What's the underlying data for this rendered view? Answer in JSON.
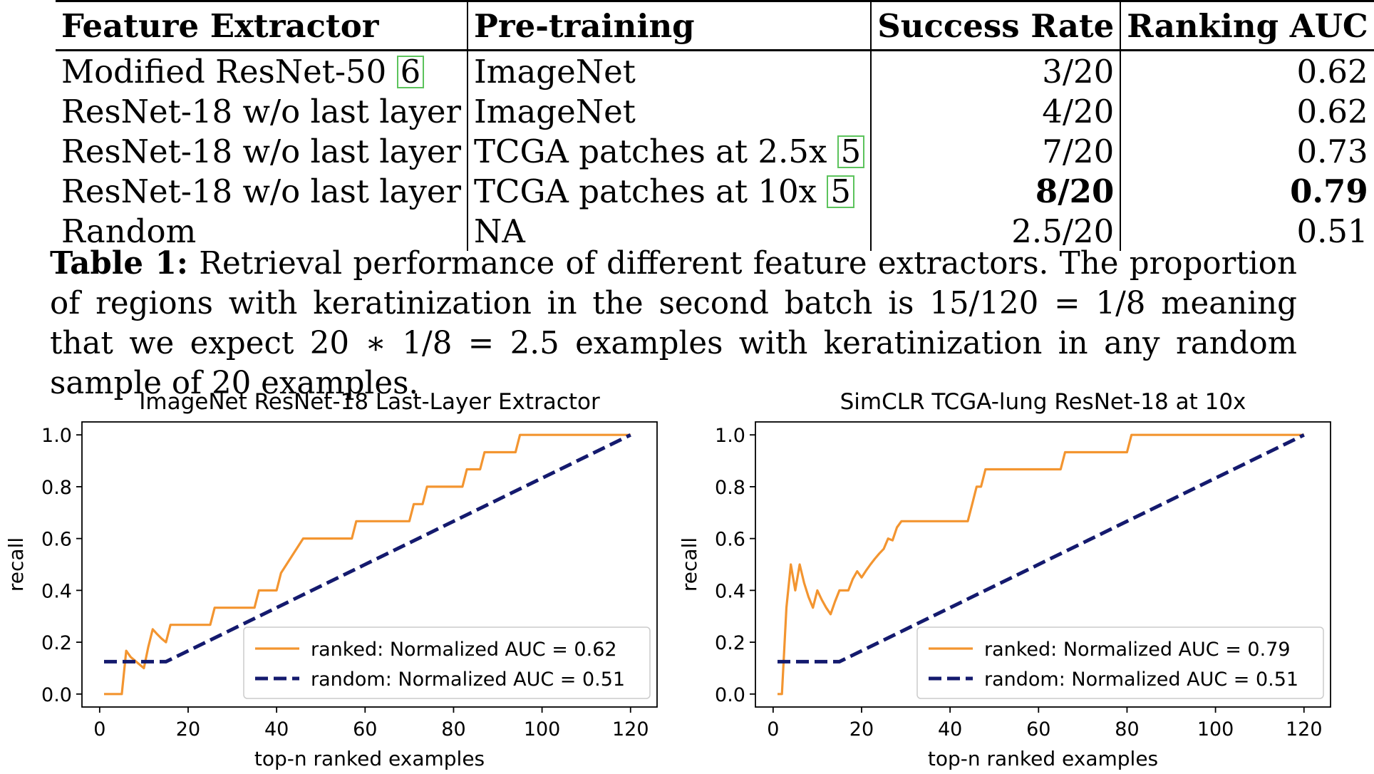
{
  "table": {
    "headers": [
      "Feature Extractor",
      "Pre-training",
      "Success Rate",
      "Ranking AUC"
    ],
    "rows": [
      {
        "extractor": "Modified ResNet-50",
        "extractor_cite": "6",
        "pretraining": "ImageNet",
        "pretraining_cite": "",
        "success": "3/20",
        "auc": "0.62",
        "best": false
      },
      {
        "extractor": "ResNet-18 w/o last layer",
        "extractor_cite": "",
        "pretraining": "ImageNet",
        "pretraining_cite": "",
        "success": "4/20",
        "auc": "0.62",
        "best": false
      },
      {
        "extractor": "ResNet-18 w/o last layer",
        "extractor_cite": "",
        "pretraining": "TCGA patches at 2.5x",
        "pretraining_cite": "5",
        "success": "7/20",
        "auc": "0.73",
        "best": false
      },
      {
        "extractor": "ResNet-18 w/o last layer",
        "extractor_cite": "",
        "pretraining": "TCGA patches at 10x",
        "pretraining_cite": "5",
        "success": "8/20",
        "auc": "0.79",
        "best": true
      },
      {
        "extractor": "Random",
        "extractor_cite": "",
        "pretraining": "NA",
        "pretraining_cite": "",
        "success": "2.5/20",
        "auc": "0.51",
        "best": false
      }
    ]
  },
  "caption": {
    "label": "Table 1:",
    "text": "Retrieval performance of different feature extractors. The proportion of regions with keratinization in the second batch is 15/120 = 1/8 meaning that we expect 20 ∗ 1/8 = 2.5 examples with keratinization in any random sample of 20 examples."
  },
  "colors": {
    "ranked": "#f39530",
    "random": "#141a6e",
    "cite_box": "#5cc35c"
  },
  "chart_data": [
    {
      "type": "line",
      "title": "ImageNet ResNet-18 Last-Layer Extractor",
      "xlabel": "top-n ranked examples",
      "ylabel": "recall",
      "xlim": [
        -4,
        126
      ],
      "ylim": [
        -0.05,
        1.05
      ],
      "xticks": [
        0,
        20,
        40,
        60,
        80,
        100,
        120
      ],
      "yticks": [
        "0.0",
        "0.2",
        "0.4",
        "0.6",
        "0.8",
        "1.0"
      ],
      "grid": false,
      "legend_position": "lower-right",
      "series": [
        {
          "name": "ranked: Normalized AUC = 0.62",
          "style": "solid",
          "x": [
            1,
            5,
            6,
            7,
            10,
            11,
            12,
            13,
            14,
            15,
            16,
            25,
            26,
            35,
            36,
            40,
            41,
            46,
            57,
            58,
            70,
            71,
            73,
            74,
            82,
            83,
            86,
            87,
            94,
            95,
            120
          ],
          "y": [
            0,
            0,
            0.167,
            0.143,
            0.1,
            0.182,
            0.25,
            0.231,
            0.214,
            0.2,
            0.267,
            0.267,
            0.333,
            0.333,
            0.4,
            0.4,
            0.467,
            0.6,
            0.6,
            0.667,
            0.667,
            0.733,
            0.733,
            0.8,
            0.8,
            0.867,
            0.867,
            0.933,
            0.933,
            1,
            1
          ]
        },
        {
          "name": "random: Normalized AUC = 0.51",
          "style": "dashed",
          "x": [
            1,
            15,
            120
          ],
          "y": [
            0.125,
            0.125,
            1.0
          ]
        }
      ]
    },
    {
      "type": "line",
      "title": "SimCLR TCGA-lung ResNet-18 at 10x",
      "xlabel": "top-n ranked examples",
      "ylabel": "recall",
      "xlim": [
        -4,
        126
      ],
      "ylim": [
        -0.05,
        1.05
      ],
      "xticks": [
        0,
        20,
        40,
        60,
        80,
        100,
        120
      ],
      "yticks": [
        "0.0",
        "0.2",
        "0.4",
        "0.6",
        "0.8",
        "1.0"
      ],
      "grid": false,
      "legend_position": "lower-right",
      "series": [
        {
          "name": "ranked: Normalized AUC = 0.79",
          "style": "solid",
          "x": [
            1,
            2,
            3,
            4,
            5,
            6,
            7,
            8,
            9,
            10,
            11,
            12,
            13,
            14,
            15,
            16,
            17,
            18,
            19,
            20,
            21,
            22,
            23,
            24,
            25,
            26,
            27,
            28,
            29,
            36,
            44,
            45,
            46,
            47,
            48,
            65,
            66,
            80,
            81,
            120
          ],
          "y": [
            0,
            0,
            0.333,
            0.5,
            0.4,
            0.5,
            0.429,
            0.375,
            0.333,
            0.4,
            0.364,
            0.333,
            0.308,
            0.357,
            0.4,
            0.4,
            0.4,
            0.444,
            0.474,
            0.45,
            0.476,
            0.5,
            0.522,
            0.542,
            0.56,
            0.6,
            0.593,
            0.643,
            0.667,
            0.667,
            0.667,
            0.733,
            0.8,
            0.8,
            0.867,
            0.867,
            0.933,
            0.933,
            1,
            1
          ]
        },
        {
          "name": "random: Normalized AUC = 0.51",
          "style": "dashed",
          "x": [
            1,
            15,
            120
          ],
          "y": [
            0.125,
            0.125,
            1.0
          ]
        }
      ]
    }
  ]
}
